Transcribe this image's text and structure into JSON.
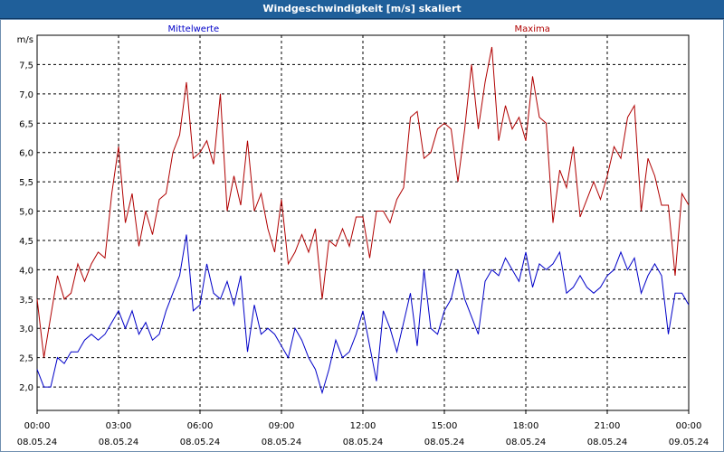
{
  "window": {
    "title": "Windgeschwindigkeit [m/s] skaliert"
  },
  "chart_data": {
    "type": "line",
    "title": "Windgeschwindigkeit [m/s] skaliert",
    "ylabel": "m/s",
    "xlabel": "",
    "ylim": [
      1.6,
      8.0
    ],
    "y_ticks": [
      2.0,
      2.5,
      3.0,
      3.5,
      4.0,
      4.5,
      5.0,
      5.5,
      6.0,
      6.5,
      7.0,
      7.5
    ],
    "y_tick_labels": [
      "2,0",
      "2,5",
      "3,0",
      "3,5",
      "4,0",
      "4,5",
      "5,0",
      "5,5",
      "6,0",
      "6,5",
      "7,0",
      "7,5"
    ],
    "x_range_hours": [
      0,
      24
    ],
    "x_ticks": [
      {
        "time": "00:00",
        "date": "08.05.24"
      },
      {
        "time": "03:00",
        "date": "08.05.24"
      },
      {
        "time": "06:00",
        "date": "08.05.24"
      },
      {
        "time": "09:00",
        "date": "08.05.24"
      },
      {
        "time": "12:00",
        "date": "08.05.24"
      },
      {
        "time": "15:00",
        "date": "08.05.24"
      },
      {
        "time": "18:00",
        "date": "08.05.24"
      },
      {
        "time": "21:00",
        "date": "08.05.24"
      },
      {
        "time": "00:00",
        "date": "09.05.24"
      }
    ],
    "grid": true,
    "legend_placement": "top",
    "series": [
      {
        "name": "Mittelwerte",
        "color": "#0000c8",
        "x": [
          0,
          0.25,
          0.5,
          0.75,
          1,
          1.25,
          1.5,
          1.75,
          2,
          2.25,
          2.5,
          2.75,
          3,
          3.25,
          3.5,
          3.75,
          4,
          4.25,
          4.5,
          4.75,
          5,
          5.25,
          5.5,
          5.75,
          6,
          6.25,
          6.5,
          6.75,
          7,
          7.25,
          7.5,
          7.75,
          8,
          8.25,
          8.5,
          8.75,
          9,
          9.25,
          9.5,
          9.75,
          10,
          10.25,
          10.5,
          10.75,
          11,
          11.25,
          11.5,
          11.75,
          12,
          12.25,
          12.5,
          12.75,
          13,
          13.25,
          13.5,
          13.75,
          14,
          14.25,
          14.5,
          14.75,
          15,
          15.25,
          15.5,
          15.75,
          16,
          16.25,
          16.5,
          16.75,
          17,
          17.25,
          17.5,
          17.75,
          18,
          18.25,
          18.5,
          18.75,
          19,
          19.25,
          19.5,
          19.75,
          20,
          20.25,
          20.5,
          20.75,
          21,
          21.25,
          21.5,
          21.75,
          22,
          22.25,
          22.5,
          22.75,
          23,
          23.25,
          23.5,
          23.75,
          24
        ],
        "values": [
          2.3,
          2.0,
          2.0,
          2.5,
          2.4,
          2.6,
          2.6,
          2.8,
          2.9,
          2.8,
          2.9,
          3.1,
          3.3,
          3.0,
          3.3,
          2.9,
          3.1,
          2.8,
          2.9,
          3.3,
          3.6,
          3.9,
          4.6,
          3.3,
          3.4,
          4.1,
          3.6,
          3.5,
          3.8,
          3.4,
          3.9,
          2.6,
          3.4,
          2.9,
          3.0,
          2.9,
          2.7,
          2.5,
          3.0,
          2.8,
          2.5,
          2.3,
          1.9,
          2.3,
          2.8,
          2.5,
          2.6,
          2.9,
          3.3,
          2.7,
          2.1,
          3.3,
          3.0,
          2.6,
          3.1,
          3.6,
          2.7,
          4.0,
          3.0,
          2.9,
          3.3,
          3.5,
          4.0,
          3.5,
          3.2,
          2.9,
          3.8,
          4.0,
          3.9,
          4.2,
          4.0,
          3.8,
          4.3,
          3.7,
          4.1,
          4.0,
          4.1,
          4.3,
          3.6,
          3.7,
          3.9,
          3.7,
          3.6,
          3.7,
          3.9,
          4.0,
          4.3,
          4.0,
          4.2,
          3.6,
          3.9,
          4.1,
          3.9,
          2.9,
          3.6,
          3.6,
          3.4
        ]
      },
      {
        "name": "Maxima",
        "color": "#b00000",
        "x": [
          0,
          0.25,
          0.5,
          0.75,
          1,
          1.25,
          1.5,
          1.75,
          2,
          2.25,
          2.5,
          2.75,
          3,
          3.25,
          3.5,
          3.75,
          4,
          4.25,
          4.5,
          4.75,
          5,
          5.25,
          5.5,
          5.75,
          6,
          6.25,
          6.5,
          6.75,
          7,
          7.25,
          7.5,
          7.75,
          8,
          8.25,
          8.5,
          8.75,
          9,
          9.25,
          9.5,
          9.75,
          10,
          10.25,
          10.5,
          10.75,
          11,
          11.25,
          11.5,
          11.75,
          12,
          12.25,
          12.5,
          12.75,
          13,
          13.25,
          13.5,
          13.75,
          14,
          14.25,
          14.5,
          14.75,
          15,
          15.25,
          15.5,
          15.75,
          16,
          16.25,
          16.5,
          16.75,
          17,
          17.25,
          17.5,
          17.75,
          18,
          18.25,
          18.5,
          18.75,
          19,
          19.25,
          19.5,
          19.75,
          20,
          20.25,
          20.5,
          20.75,
          21,
          21.25,
          21.5,
          21.75,
          22,
          22.25,
          22.5,
          22.75,
          23,
          23.25,
          23.5,
          23.75,
          24
        ],
        "values": [
          3.5,
          2.5,
          3.2,
          3.9,
          3.5,
          3.6,
          4.1,
          3.8,
          4.1,
          4.3,
          4.2,
          5.3,
          6.1,
          4.8,
          5.3,
          4.4,
          5.0,
          4.6,
          5.2,
          5.3,
          6.0,
          6.3,
          7.2,
          5.9,
          6.0,
          6.2,
          5.8,
          7.0,
          5.0,
          5.6,
          5.1,
          6.2,
          5.0,
          5.3,
          4.7,
          4.3,
          5.2,
          4.1,
          4.3,
          4.6,
          4.3,
          4.7,
          3.5,
          4.5,
          4.4,
          4.7,
          4.4,
          4.9,
          4.9,
          4.2,
          5.0,
          5.0,
          4.8,
          5.2,
          5.4,
          6.6,
          6.7,
          5.9,
          6.0,
          6.4,
          6.5,
          6.4,
          5.5,
          6.4,
          7.5,
          6.4,
          7.2,
          7.8,
          6.2,
          6.8,
          6.4,
          6.6,
          6.2,
          7.3,
          6.6,
          6.5,
          4.8,
          5.7,
          5.4,
          6.1,
          4.9,
          5.2,
          5.5,
          5.2,
          5.6,
          6.1,
          5.9,
          6.6,
          6.8,
          5.0,
          5.9,
          5.6,
          5.1,
          5.1,
          3.9,
          5.3,
          5.1
        ]
      }
    ]
  }
}
